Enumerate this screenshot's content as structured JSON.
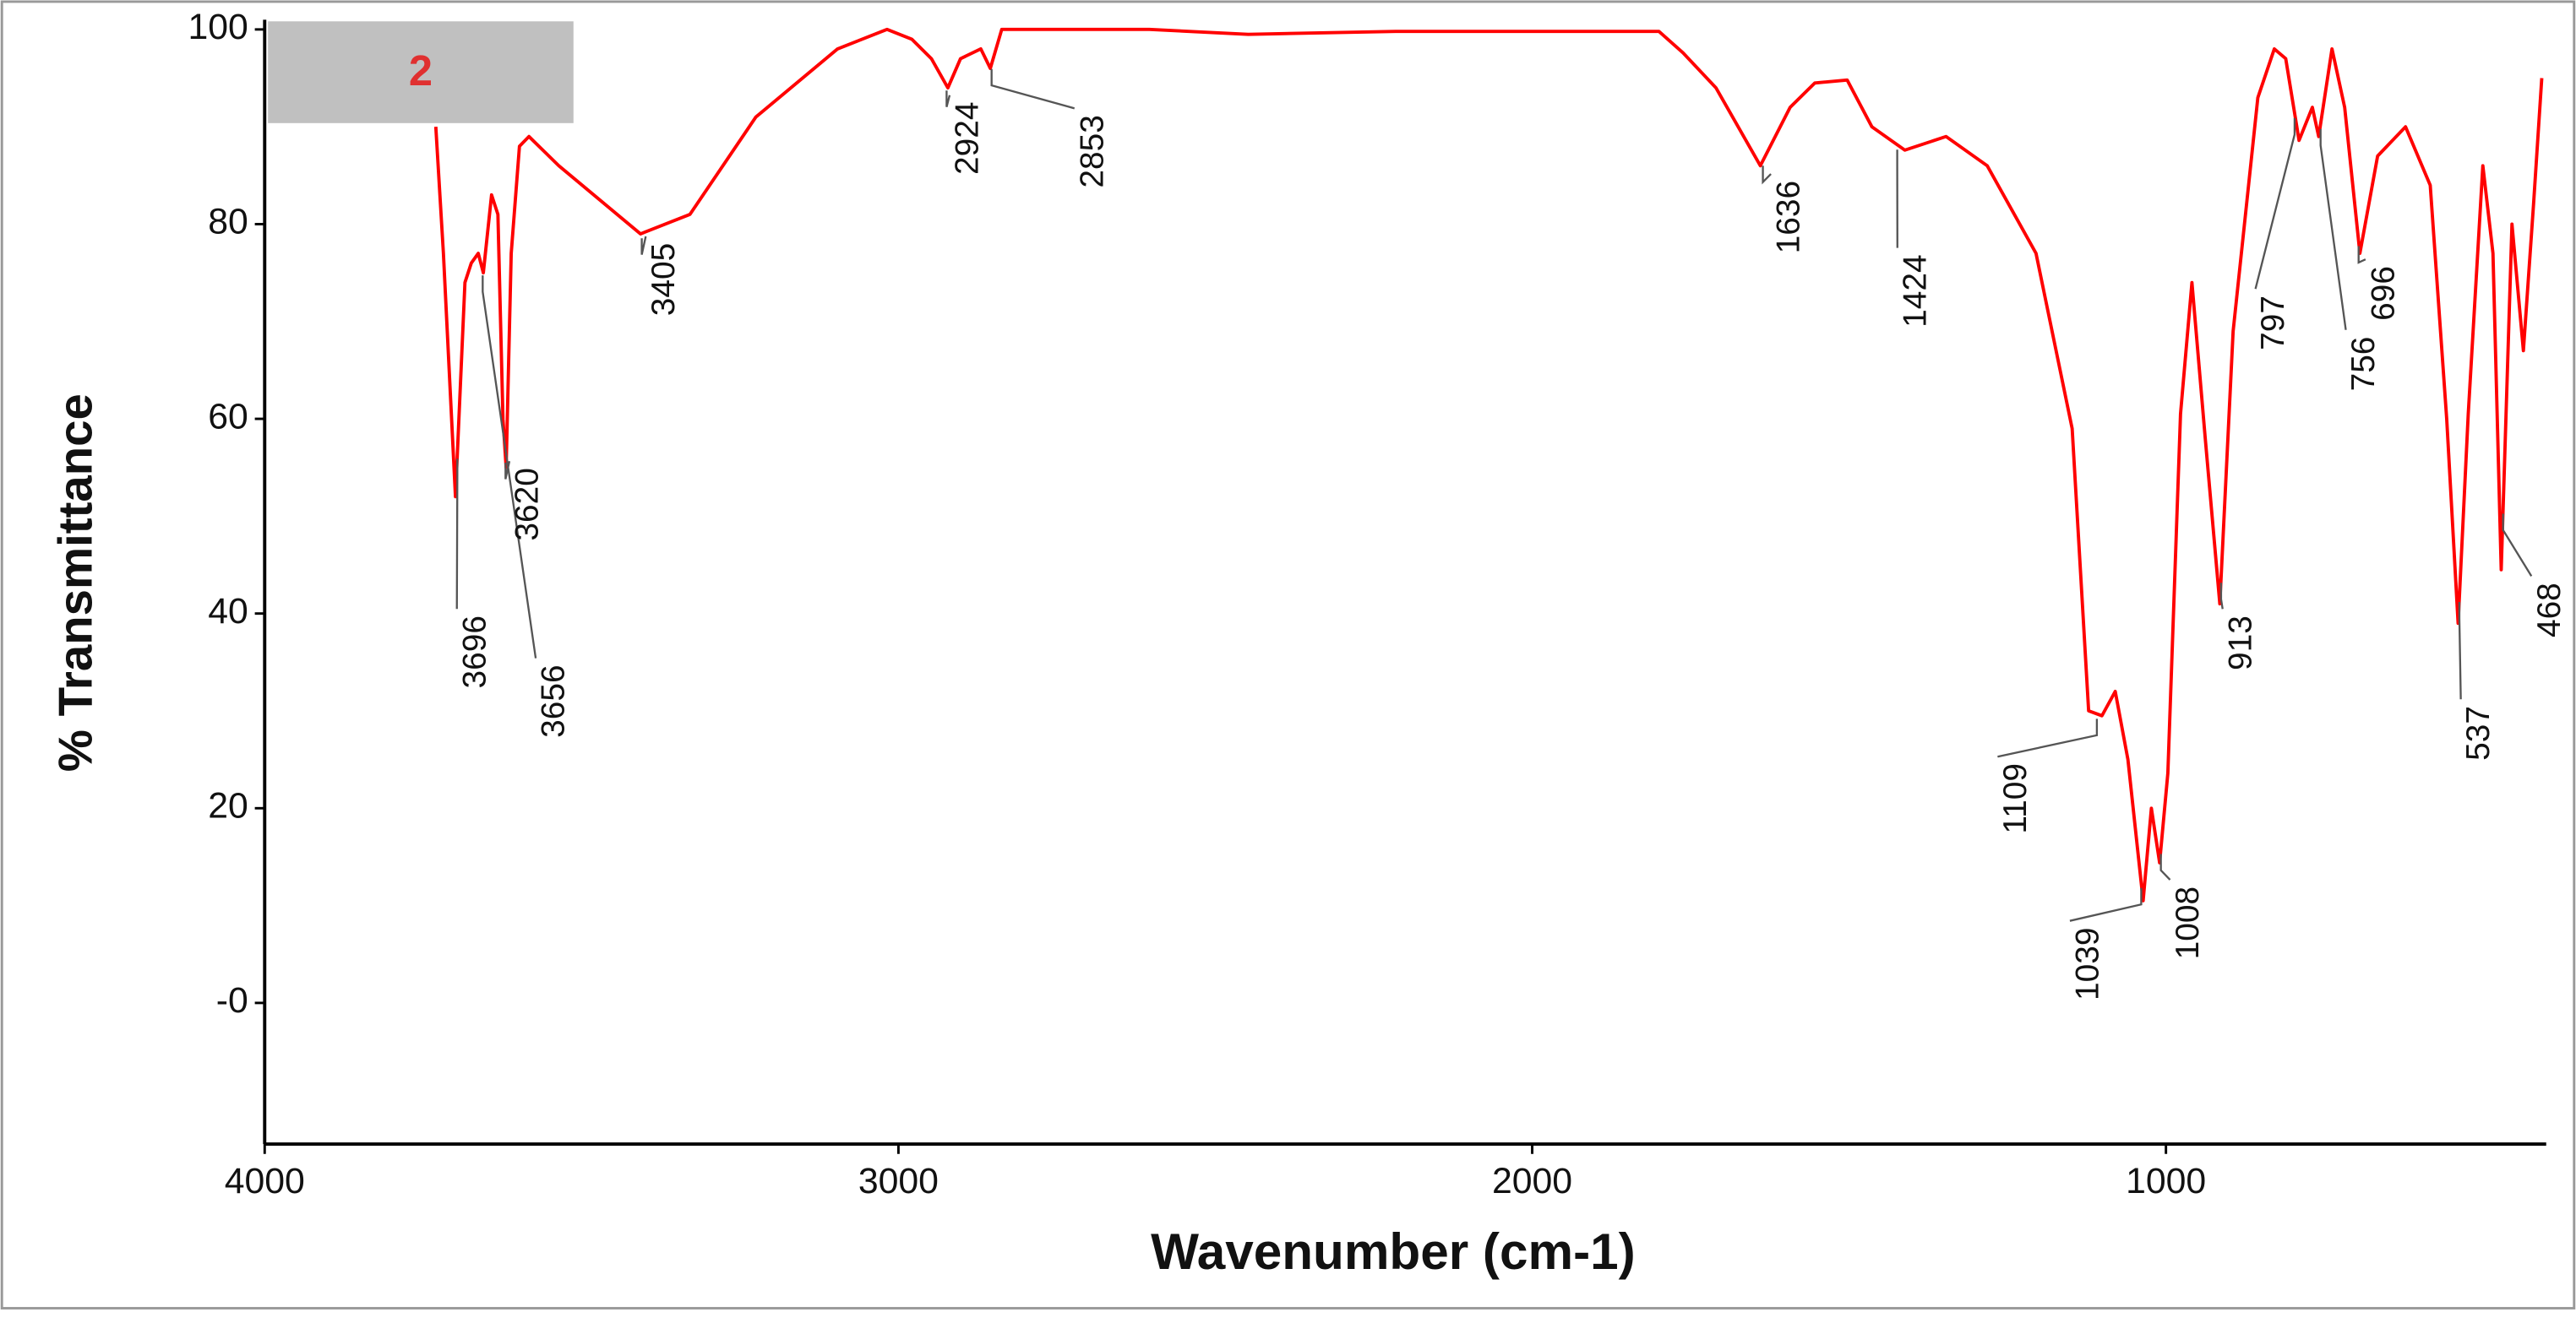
{
  "chart_data": {
    "type": "line",
    "label": "2",
    "x_label": "Wavenumber (cm-1)",
    "y_label": "% Transmittance",
    "xlim": [
      4000,
      400
    ],
    "ylim": [
      -14.5,
      101
    ],
    "xticks": [
      4000,
      3000,
      2000,
      1000
    ],
    "yticks": [
      {
        "value": 0,
        "label": "-0"
      },
      20,
      40,
      60,
      80,
      100
    ],
    "grid": false,
    "x": [
      3730,
      3718,
      3699,
      3684,
      3674,
      3663,
      3655,
      3642,
      3632,
      3624,
      3619,
      3611,
      3598,
      3583,
      3536,
      3407,
      3329,
      3225,
      3096,
      3018,
      2979,
      2948,
      2922,
      2902,
      2870,
      2855,
      2837,
      2604,
      2448,
      2215,
      1800,
      1762,
      1710,
      1640,
      1593,
      1554,
      1503,
      1464,
      1412,
      1347,
      1282,
      1205,
      1148,
      1122,
      1101,
      1080,
      1060,
      1036,
      1023,
      1010,
      997,
      977,
      959,
      938,
      915,
      894,
      855,
      829,
      811,
      790,
      769,
      759,
      738,
      718,
      694,
      666,
      622,
      583,
      557,
      539,
      523,
      500,
      484,
      471,
      454,
      436,
      420,
      407
    ],
    "series": [
      {
        "name": "2",
        "color": "#ff0000",
        "values": [
          90,
          77,
          52,
          74,
          76,
          77,
          75,
          83,
          81,
          60,
          55,
          77,
          88,
          89,
          86,
          79,
          81,
          91,
          98,
          100,
          99,
          97,
          94,
          97,
          98,
          96,
          100,
          100,
          99.5,
          99.8,
          99.8,
          97.6,
          94,
          86,
          92,
          94.5,
          94.8,
          90,
          87.6,
          89,
          86,
          77,
          59,
          30,
          29.5,
          32,
          25,
          10.5,
          20,
          14.4,
          23.6,
          60.5,
          74,
          58,
          41,
          69,
          93,
          98,
          97,
          88.6,
          92,
          89,
          98,
          92,
          77,
          87,
          90,
          84,
          60,
          39,
          60.5,
          86,
          77,
          44.5,
          80,
          67,
          82,
          95
        ]
      }
    ],
    "peaks": [
      3696,
      3656,
      3620,
      3405,
      2924,
      2853,
      1636,
      1424,
      1109,
      1039,
      1008,
      913,
      797,
      756,
      696,
      537,
      468
    ]
  }
}
